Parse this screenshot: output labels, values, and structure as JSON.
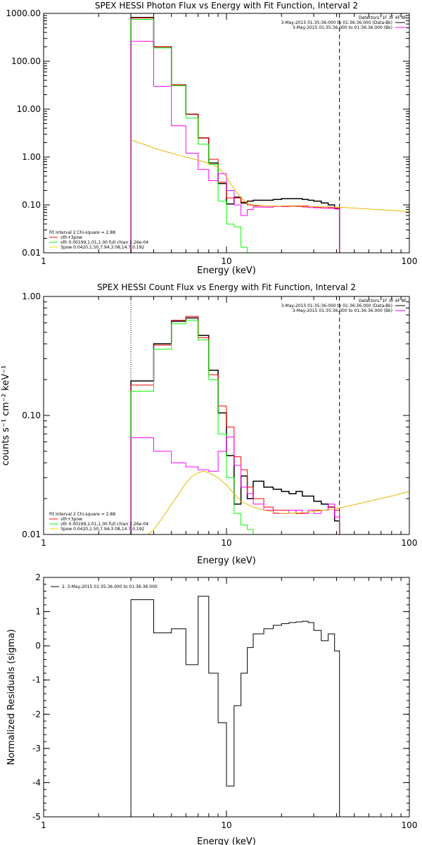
{
  "chart_data": [
    {
      "type": "line",
      "title": "SPEX HESSI Photon Flux vs Energy with Fit Function, Interval 2",
      "xlabel": "Energy (keV)",
      "ylabel": "",
      "xscale": "log",
      "yscale": "log",
      "xlim": [
        1,
        100
      ],
      "ylim": [
        0.01,
        1000
      ],
      "xticks": [
        "1",
        "10",
        "100"
      ],
      "yticks": [
        {
          "v": 0.01,
          "label": "0.01"
        },
        {
          "v": 0.1,
          "label": "0.10"
        },
        {
          "v": 1,
          "label": "1.00"
        },
        {
          "v": 10,
          "label": "10.00"
        },
        {
          "v": 100,
          "label": "100.00"
        },
        {
          "v": 1000,
          "label": "1000.00"
        }
      ],
      "vlines": [
        {
          "x": 3.0,
          "style": "dotted",
          "color": "#ffd700"
        },
        {
          "x": 41.5,
          "style": "dashed",
          "color": "#000000"
        }
      ],
      "legend_top_right": [
        {
          "text": "Detectors: 1F 3F 4F 8F",
          "color": "",
          "line": false
        },
        {
          "text": "3-May-2015 01:35:36.000 to 01:36:36.000 (Data-Bk)",
          "color": "#000000",
          "line": true
        },
        {
          "text": "3-May-2015 01:35:36.000 to 01:36:36.000 (Bk)",
          "color": "#ff00ff",
          "line": true
        }
      ],
      "legend_bottom_left": [
        {
          "text": "Fit Interval 2   Chi-square = 2.88",
          "color": "",
          "line": false
        },
        {
          "text": "vth+3pow",
          "color": "#ff0000",
          "line": true
        },
        {
          "text": "vth 0.00199,1.01,1.00  full chian 1.26e-04",
          "color": "#00ff00",
          "line": true
        },
        {
          "text": "3pow 0.0420,1.50,7.94,3.08,14.7,0.192",
          "color": "#ffd700",
          "line": true
        }
      ],
      "series": [
        {
          "color": "#000000",
          "width": 1.5,
          "edges": [
            3.0,
            4.0,
            5.0,
            6.0,
            7.0,
            8.0,
            9.0,
            10.0,
            11.0,
            12.0,
            13.0,
            14.0,
            16.0,
            18.0,
            20.0,
            22.0,
            24.0,
            26.0,
            28.0,
            30.0,
            33.0,
            36.0,
            39.0,
            41.5
          ],
          "values": [
            820,
            200,
            32,
            7.8,
            2.5,
            0.75,
            0.28,
            0.105,
            0.145,
            0.11,
            0.12,
            0.125,
            0.125,
            0.13,
            0.135,
            0.135,
            0.135,
            0.13,
            0.125,
            0.12,
            0.11,
            0.1,
            0.085
          ]
        },
        {
          "color": "#ff0000",
          "width": 1,
          "edges": [
            3.0,
            4.0,
            5.0,
            6.0,
            7.0,
            8.0,
            9.0,
            10.0,
            11.0,
            12.0,
            13.0,
            14.0,
            16.0,
            18.0,
            20.0,
            22.0,
            24.0,
            26.0,
            28.0,
            30.0,
            33.0,
            36.0,
            39.0,
            41.5
          ],
          "values": [
            800,
            200,
            32,
            7.8,
            2.5,
            0.9,
            0.3,
            0.14,
            0.14,
            0.115,
            0.1,
            0.095,
            0.09,
            0.093,
            0.095,
            0.095,
            0.095,
            0.095,
            0.092,
            0.09,
            0.09,
            0.085,
            0.085
          ]
        },
        {
          "color": "#00ff00",
          "width": 1,
          "edges": [
            3.0,
            4.0,
            5.0,
            6.0,
            7.0,
            8.0,
            9.0,
            10.0,
            11.0,
            12.0,
            13.0,
            14.0,
            16.0
          ],
          "values": [
            750,
            190,
            31,
            6.5,
            1.85,
            0.7,
            0.12,
            0.04,
            0.035,
            0.013,
            0.01,
            0.01
          ]
        },
        {
          "color": "#ff00ff",
          "width": 1,
          "edges": [
            3.0,
            4.0,
            5.0,
            6.0,
            7.0,
            8.0,
            9.0,
            10.0,
            11.0,
            12.0,
            13.0,
            14.0,
            16.0,
            18.0,
            20.0,
            22.0,
            24.0,
            26.0,
            28.0,
            30.0,
            33.0,
            36.0,
            39.0,
            41.5
          ],
          "values": [
            260,
            30,
            4.5,
            1.2,
            0.55,
            0.32,
            0.45,
            0.2,
            0.1,
            0.06,
            0.08,
            0.09,
            0.09,
            0.093,
            0.092,
            0.093,
            0.092,
            0.09,
            0.088,
            0.087,
            0.085,
            0.088,
            0.082
          ]
        },
        {
          "color": "#e6b800",
          "width": 1,
          "curve": true,
          "x": [
            3.0,
            3.3,
            3.6,
            4.0,
            4.5,
            5.0,
            5.5,
            6.0,
            6.5,
            7.0,
            7.5,
            8.0,
            8.5,
            9.0,
            9.5,
            10.0,
            11.0,
            12.0,
            13.0,
            14.0,
            16.0,
            18.0,
            20.0,
            25.0,
            30.0,
            40.0,
            50.0,
            60.0,
            80.0,
            100.0
          ],
          "values": [
            2.3,
            2.0,
            1.8,
            1.55,
            1.35,
            1.2,
            1.08,
            1.0,
            0.92,
            0.86,
            0.8,
            0.74,
            0.68,
            0.6,
            0.5,
            0.38,
            0.22,
            0.14,
            0.11,
            0.1,
            0.095,
            0.095,
            0.094,
            0.093,
            0.092,
            0.09,
            0.086,
            0.082,
            0.077,
            0.072
          ]
        }
      ]
    },
    {
      "type": "line",
      "title": "SPEX HESSI Count Flux vs Energy with Fit Function, Interval 2",
      "xlabel": "Energy (keV)",
      "ylabel": "counts s⁻¹ cm⁻² keV⁻¹",
      "xscale": "log",
      "yscale": "log",
      "xlim": [
        1,
        100
      ],
      "ylim": [
        0.01,
        1.0
      ],
      "xticks": [
        "1",
        "10",
        "100"
      ],
      "yticks": [
        {
          "v": 0.01,
          "label": "0.01"
        },
        {
          "v": 0.1,
          "label": "0.10"
        },
        {
          "v": 1,
          "label": "1.00"
        }
      ],
      "vlines": [
        {
          "x": 3.0,
          "style": "dotted",
          "color": "#000000"
        },
        {
          "x": 41.5,
          "style": "dashed",
          "color": "#000000"
        }
      ],
      "legend_top_right": [
        {
          "text": "Detectors: 1F 3F 4F 8F",
          "color": "",
          "line": false
        },
        {
          "text": "3-May-2015 01:35:36.000 to 01:36:36.000 (Data-Bk)",
          "color": "#000000",
          "line": true
        },
        {
          "text": "3-May-2015 01:35:36.000 to 01:36:36.000 (Bk)",
          "color": "#ff00ff",
          "line": true
        }
      ],
      "legend_bottom_left": [
        {
          "text": "Fit Interval 2   Chi-square = 2.88",
          "color": "",
          "line": false
        },
        {
          "text": "vth+3pow",
          "color": "#ff0000",
          "line": true
        },
        {
          "text": "vth 0.00199,1.01,1.00  full chian 1.26e-04",
          "color": "#00ff00",
          "line": true
        },
        {
          "text": "3pow 0.0420,1.50,7.94,3.08,14.7,0.192",
          "color": "#ffd700",
          "line": true
        }
      ],
      "series": [
        {
          "color": "#000000",
          "width": 1.5,
          "edges": [
            3.0,
            4.0,
            5.0,
            6.0,
            7.0,
            8.0,
            9.0,
            10.0,
            11.0,
            12.0,
            13.0,
            14.0,
            16.0,
            18.0,
            20.0,
            22.0,
            24.0,
            26.0,
            28.0,
            30.0,
            33.0,
            36.0,
            39.0,
            41.5
          ],
          "values": [
            0.195,
            0.4,
            0.62,
            0.66,
            0.47,
            0.24,
            0.105,
            0.046,
            0.018,
            0.031,
            0.02,
            0.028,
            0.025,
            0.024,
            0.023,
            0.022,
            0.023,
            0.021,
            0.021,
            0.019,
            0.018,
            0.017,
            0.013
          ]
        },
        {
          "color": "#ff0000",
          "width": 1,
          "edges": [
            3.0,
            4.0,
            5.0,
            6.0,
            7.0,
            8.0,
            9.0,
            10.0,
            11.0,
            12.0,
            13.0,
            14.0,
            16.0,
            18.0,
            20.0,
            22.0,
            24.0,
            26.0,
            28.0,
            30.0,
            33.0,
            36.0,
            39.0,
            41.5
          ],
          "values": [
            0.18,
            0.39,
            0.63,
            0.68,
            0.45,
            0.22,
            0.12,
            0.08,
            0.045,
            0.035,
            0.025,
            0.02,
            0.017,
            0.016,
            0.016,
            0.016,
            0.015,
            0.015,
            0.016,
            0.016,
            0.016,
            0.017,
            0.016
          ]
        },
        {
          "color": "#00ff00",
          "width": 1,
          "edges": [
            3.0,
            4.0,
            5.0,
            6.0,
            7.0,
            8.0,
            9.0,
            10.0,
            11.0,
            12.0,
            13.0,
            14.0,
            16.0
          ],
          "values": [
            0.16,
            0.36,
            0.59,
            0.63,
            0.43,
            0.2,
            0.07,
            0.03,
            0.015,
            0.012,
            0.011,
            0.01
          ]
        },
        {
          "color": "#ff00ff",
          "width": 1,
          "edges": [
            3.0,
            4.0,
            5.0,
            6.0,
            7.0,
            8.0,
            9.0,
            10.0,
            11.0,
            12.0,
            13.0,
            14.0,
            16.0,
            18.0,
            20.0,
            22.0,
            24.0,
            26.0,
            28.0,
            30.0,
            33.0,
            36.0,
            39.0,
            41.5
          ],
          "values": [
            0.065,
            0.05,
            0.04,
            0.037,
            0.035,
            0.034,
            0.05,
            0.066,
            0.038,
            0.025,
            0.022,
            0.018,
            0.016,
            0.015,
            0.015,
            0.016,
            0.016,
            0.015,
            0.016,
            0.015,
            0.016,
            0.018,
            0.014
          ]
        },
        {
          "color": "#e6b800",
          "width": 1,
          "curve": true,
          "x": [
            3.2,
            3.6,
            4.0,
            4.5,
            5.0,
            5.5,
            6.0,
            6.5,
            7.0,
            7.5,
            8.0,
            9.0,
            10.0,
            11.0,
            12.0,
            14.0,
            16.0,
            20.0,
            25.0,
            30.0,
            40.0,
            50.0,
            60.0,
            80.0,
            100.0
          ],
          "values": [
            0.0085,
            0.0095,
            0.011,
            0.014,
            0.018,
            0.022,
            0.027,
            0.031,
            0.033,
            0.034,
            0.033,
            0.03,
            0.026,
            0.022,
            0.019,
            0.017,
            0.016,
            0.015,
            0.0152,
            0.0156,
            0.0165,
            0.0178,
            0.019,
            0.021,
            0.023
          ]
        }
      ]
    },
    {
      "type": "line",
      "title": "",
      "xlabel": "Energy (keV)",
      "ylabel": "Normalized Residuals (sigma)",
      "xscale": "log",
      "yscale": "linear",
      "xlim": [
        1,
        100
      ],
      "ylim": [
        -5,
        2
      ],
      "xticks": [
        "1",
        "10",
        "100"
      ],
      "yticks": [
        {
          "v": 2,
          "label": "2"
        },
        {
          "v": 1,
          "label": "1"
        },
        {
          "v": 0,
          "label": "0"
        },
        {
          "v": -1,
          "label": "-1"
        },
        {
          "v": -2,
          "label": "-2"
        },
        {
          "v": -3,
          "label": "-3"
        },
        {
          "v": -4,
          "label": "-4"
        },
        {
          "v": -5,
          "label": "-5"
        }
      ],
      "vlines": [],
      "legend_top_right": [],
      "legend_bottom_left": [],
      "legend_top_left": [
        {
          "text": "2.  3-May-2015 01:35:36.000 to 01:36:36.000",
          "color": "#000000",
          "line": true
        }
      ],
      "series": [
        {
          "color": "#000000",
          "width": 1,
          "drop_ends": true,
          "edges": [
            3.0,
            4.0,
            5.0,
            6.0,
            7.0,
            8.0,
            9.0,
            10.0,
            11.0,
            12.0,
            13.0,
            14.0,
            16.0,
            18.0,
            20.0,
            22.0,
            24.0,
            26.0,
            28.0,
            30.0,
            33.0,
            36.0,
            39.0,
            41.5
          ],
          "values": [
            1.35,
            0.38,
            0.5,
            -0.55,
            1.45,
            -0.8,
            -2.25,
            -4.1,
            -1.75,
            -0.8,
            -0.05,
            0.35,
            0.5,
            0.6,
            0.65,
            0.68,
            0.7,
            0.72,
            0.68,
            0.45,
            0.15,
            0.35,
            -0.15
          ]
        }
      ]
    }
  ]
}
